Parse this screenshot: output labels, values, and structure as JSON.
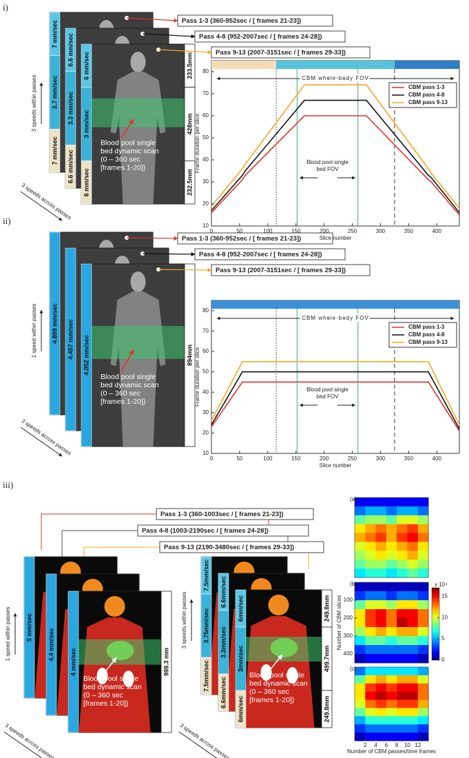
{
  "figure": {
    "panel_i": {
      "label": "i)",
      "passes": [
        "Pass 1-3 (360-952sec / [ frames 21-23])",
        "Pass 4-8 (952-2007sec / [ frames 24-28])",
        "Pass 9-13  (2007-3151sec / [ frames 29-33])"
      ],
      "speeds": [
        [
          "7 mm/sec",
          "3.7 mm/sec",
          "7 mm/sec"
        ],
        [
          "6.6 mm/sec",
          "3.3 mm/sec",
          "6.6 mm/sec"
        ],
        [
          "6 mm/sec",
          "3 mm/sec",
          "6 mm/sec"
        ]
      ],
      "lengths": [
        "233.5mm",
        "428mm",
        "232.5mm"
      ],
      "blood_pool": [
        "Blood pool single",
        "bed dynamic scan",
        "(0 – 360 sec",
        "[frames  1-20])"
      ],
      "within": "3 speeds within passes",
      "across": "3 speeds across passes"
    },
    "panel_ii": {
      "label": "ii)",
      "passes": [
        "Pass 1-3 (360-952sec / [ frames 21-23])",
        "Pass 4-8 (952-2007sec / [ frames 24-28])",
        "Pass 9-13  (2007-3151sec / [ frames 29-33])"
      ],
      "speeds": [
        [
          "4.899 mm/sec"
        ],
        [
          "4.457 mm/sec"
        ],
        [
          "4.052 mm/sec"
        ]
      ],
      "lengths": [
        "894mm"
      ],
      "blood_pool": [
        "Blood pool single",
        "bed dynamic scan",
        "(0 – 360 sec",
        "[frames  1-20])"
      ],
      "within": "1 speed within passes",
      "across": "3 speeds across passes"
    },
    "panel_iii": {
      "label": "iii)",
      "passes": [
        "Pass 1-3 (360-1003sec / [ frames 21-23])",
        "Pass 4-8 (1003-2190sec / [ frames 24-28])",
        "Pass 9-13  (2190-3480sec / [ frames 29-33])"
      ],
      "left": {
        "speeds": [
          [
            "5 mm/sec"
          ],
          [
            "4.4 mm/sec"
          ],
          [
            "4 mm/sec"
          ]
        ],
        "lengths": [
          "999.3 mm"
        ],
        "blood_pool": [
          "Blood pool single",
          "bed dynamic scan",
          "(0 – 360 sec",
          "[frames  1-20])"
        ],
        "within": "1 speed within passes",
        "across": "3 speeds across passes"
      },
      "right": {
        "speeds": [
          [
            "7.5mm/sec",
            "3.75mm/sec",
            "7.5mm/sec"
          ],
          [
            "6.6mm/sec",
            "3.3mm/sec",
            "6.6mm/sec"
          ],
          [
            "6mm/sec",
            "3mm/sec",
            "6mm/sec"
          ]
        ],
        "lengths": [
          "249.8mm",
          "499.7mm",
          "249.8mm"
        ],
        "blood_pool": [
          "Blood pool single",
          "bed dynamic scan",
          "(0 – 360 sec",
          "[frames  1-20])"
        ],
        "within": "3 speeds within passes",
        "across": "3 speeds across passes"
      }
    }
  },
  "chart_data": [
    {
      "type": "line",
      "xlabel": "Slice number",
      "ylabel": "Frame duration per slice",
      "x": [
        0,
        55,
        60,
        165,
        275,
        385,
        390,
        440
      ],
      "series": [
        {
          "name": "CBM pass 1-3",
          "color": "#e0302a",
          "values": [
            16,
            31,
            33,
            60,
            60,
            31,
            30,
            15
          ]
        },
        {
          "name": "CBM pass 4-8",
          "color": "#111111",
          "values": [
            17,
            33,
            35,
            67,
            67,
            33,
            32,
            16
          ]
        },
        {
          "name": "CBM pass 9-13",
          "color": "#f5a623",
          "values": [
            19,
            36,
            38,
            74,
            74,
            36,
            34,
            18
          ]
        }
      ],
      "xlim": [
        0,
        440
      ],
      "xticks": [
        0,
        50,
        100,
        150,
        200,
        250,
        300,
        350,
        400
      ],
      "ylim": [
        10,
        85
      ],
      "yticks": [
        10,
        20,
        30,
        40,
        50,
        60,
        70,
        80
      ],
      "legend": "upper right",
      "top_bar": [
        {
          "from": 0,
          "to": 115,
          "color": "#f6dcb4"
        },
        {
          "from": 115,
          "to": 325,
          "color": "#55c3dc"
        },
        {
          "from": 325,
          "to": 440,
          "color": "#2f7fc8"
        }
      ],
      "fov_lines": [
        {
          "x": 115,
          "style": "dotted"
        },
        {
          "x": 152,
          "style": "solid"
        },
        {
          "x": 260,
          "style": "solid"
        },
        {
          "x": 325,
          "style": "dashed"
        }
      ],
      "annotations": {
        "whole_body": "CBM whole-body FOV",
        "blood_pool": [
          "Blood pool single",
          "bed FOV"
        ]
      }
    },
    {
      "type": "line",
      "xlabel": "Slice number",
      "ylabel": "Frame duration per slice",
      "x": [
        0,
        55,
        385,
        440
      ],
      "series": [
        {
          "name": "CBM pass 1-3",
          "color": "#e0302a",
          "values": [
            23,
            45,
            45,
            21
          ]
        },
        {
          "name": "CBM pass 4-8",
          "color": "#111111",
          "values": [
            24,
            50,
            50,
            22
          ]
        },
        {
          "name": "CBM pass 9-13",
          "color": "#f5a623",
          "values": [
            26,
            55,
            55,
            24
          ]
        }
      ],
      "xlim": [
        0,
        440
      ],
      "xticks": [
        0,
        50,
        100,
        150,
        200,
        250,
        300,
        350,
        400
      ],
      "ylim": [
        10,
        85
      ],
      "yticks": [
        10,
        20,
        30,
        40,
        50,
        60,
        70,
        80
      ],
      "legend": "upper right",
      "top_bar": [
        {
          "from": 0,
          "to": 440,
          "color": "#3a8fd6"
        }
      ],
      "fov_lines": [
        {
          "x": 115,
          "style": "dotted"
        },
        {
          "x": 152,
          "style": "solid"
        },
        {
          "x": 260,
          "style": "solid"
        },
        {
          "x": 325,
          "style": "dashed"
        }
      ],
      "annotations": {
        "whole_body": "CBM whole-body FOV",
        "blood_pool": [
          "Blood pool single",
          "bed FOV"
        ]
      }
    },
    {
      "type": "heatmap",
      "label": "(a)",
      "x": [
        1,
        3,
        5,
        7,
        9,
        11,
        13
      ],
      "rows": [
        25,
        75,
        125,
        175,
        225,
        275,
        325,
        375,
        425
      ],
      "xlim": [
        0,
        14
      ],
      "ylim": [
        0,
        450
      ],
      "clim": [
        0,
        17
      ],
      "values": [
        [
          2,
          2,
          2,
          2,
          2,
          2,
          2
        ],
        [
          4,
          5,
          5,
          4,
          5,
          5,
          4
        ],
        [
          8,
          9,
          9,
          8,
          10,
          10,
          9
        ],
        [
          11,
          12,
          13,
          12,
          13,
          14,
          12
        ],
        [
          12,
          13,
          14,
          12,
          14,
          15,
          13
        ],
        [
          10,
          11,
          12,
          11,
          12,
          13,
          11
        ],
        [
          9,
          10,
          11,
          10,
          11,
          12,
          10
        ],
        [
          8,
          9,
          9,
          8,
          9,
          10,
          9
        ],
        [
          6,
          7,
          7,
          6,
          7,
          8,
          7
        ]
      ]
    },
    {
      "type": "heatmap",
      "label": "(b)",
      "x": [
        1,
        3,
        5,
        7,
        9,
        11,
        13
      ],
      "rows": [
        25,
        75,
        125,
        175,
        225,
        275,
        325,
        375,
        425
      ],
      "xlim": [
        0,
        14
      ],
      "ylim": [
        0,
        450
      ],
      "clim": [
        0,
        17
      ],
      "ylabel": "Number of CBM slices",
      "yticks": [
        100,
        200,
        300,
        400
      ],
      "colorbar": {
        "ticks": [
          0,
          5,
          10,
          15
        ],
        "label": "x 10⁴"
      },
      "values": [
        [
          1,
          1,
          1,
          1,
          1,
          1,
          1
        ],
        [
          3,
          4,
          4,
          3,
          4,
          4,
          3
        ],
        [
          8,
          10,
          10,
          9,
          11,
          11,
          9
        ],
        [
          11,
          14,
          15,
          13,
          15,
          15,
          13
        ],
        [
          11,
          14,
          15,
          13,
          16,
          15,
          13
        ],
        [
          9,
          11,
          12,
          11,
          12,
          12,
          10
        ],
        [
          6,
          8,
          8,
          7,
          8,
          8,
          7
        ],
        [
          3,
          4,
          4,
          4,
          4,
          4,
          3
        ],
        [
          1,
          2,
          2,
          2,
          2,
          2,
          1
        ]
      ]
    },
    {
      "type": "heatmap",
      "label": "(c)",
      "x": [
        1,
        3,
        5,
        7,
        9,
        11,
        13
      ],
      "rows": [
        25,
        75,
        125,
        175,
        225,
        275,
        325,
        375,
        425
      ],
      "xlim": [
        0,
        14
      ],
      "ylim": [
        0,
        450
      ],
      "clim": [
        0,
        17
      ],
      "xlabel": "Number of CBM passes/time frames",
      "xticks": [
        2,
        4,
        6,
        8,
        10,
        12
      ],
      "values": [
        [
          4,
          6,
          6,
          6,
          6,
          6,
          5
        ],
        [
          8,
          11,
          12,
          11,
          12,
          12,
          10
        ],
        [
          11,
          14,
          15,
          14,
          15,
          15,
          13
        ],
        [
          11,
          15,
          16,
          15,
          16,
          16,
          13
        ],
        [
          10,
          13,
          14,
          13,
          14,
          14,
          12
        ],
        [
          8,
          10,
          11,
          10,
          11,
          11,
          9
        ],
        [
          5,
          7,
          7,
          7,
          7,
          7,
          6
        ],
        [
          3,
          4,
          4,
          4,
          4,
          4,
          3
        ],
        [
          1,
          2,
          2,
          2,
          2,
          2,
          1
        ]
      ]
    }
  ]
}
